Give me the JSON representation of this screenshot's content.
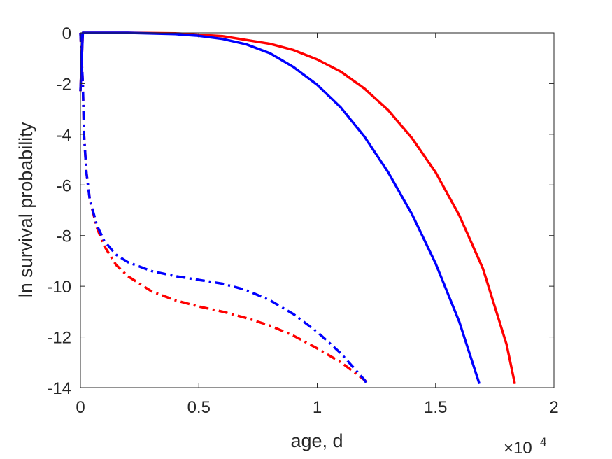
{
  "chart_data": {
    "type": "line",
    "title": "",
    "xlabel": "age, d",
    "ylabel": "ln survival probability",
    "x_exponent_label": {
      "base": "×10",
      "exponent": "4"
    },
    "xlim": [
      0,
      20000
    ],
    "ylim": [
      -14,
      0
    ],
    "x_ticks": [
      0,
      5000,
      10000,
      15000,
      20000
    ],
    "x_tick_labels": [
      "0",
      "0.5",
      "1",
      "1.5",
      "2"
    ],
    "y_ticks": [
      0,
      -2,
      -4,
      -6,
      -8,
      -10,
      -12,
      -14
    ],
    "y_tick_labels": [
      "0",
      "-2",
      "-4",
      "-6",
      "-8",
      "-10",
      "-12",
      "-14"
    ],
    "grid": false,
    "series": [
      {
        "color": "#ff0000",
        "line_style": "solid",
        "x": [
          0,
          100,
          2000,
          4000,
          6000,
          8000,
          9000,
          10000,
          11000,
          12000,
          13000,
          14000,
          15000,
          16000,
          17000,
          18000,
          18350
        ],
        "y": [
          -2.3,
          0,
          0,
          -0.02,
          -0.13,
          -0.43,
          -0.68,
          -1.05,
          -1.53,
          -2.2,
          -3.05,
          -4.15,
          -5.5,
          -7.2,
          -9.3,
          -12.3,
          -13.85
        ]
      },
      {
        "color": "#0000ff",
        "line_style": "solid",
        "x": [
          0,
          100,
          2000,
          4000,
          5000,
          6000,
          7000,
          8000,
          9000,
          10000,
          11000,
          12000,
          13000,
          14000,
          15000,
          16000,
          16850
        ],
        "y": [
          -2.3,
          0,
          0,
          -0.05,
          -0.12,
          -0.24,
          -0.45,
          -0.8,
          -1.35,
          -2.05,
          -2.95,
          -4.1,
          -5.5,
          -7.15,
          -9.1,
          -11.4,
          -13.85
        ]
      },
      {
        "color": "#ff0000",
        "line_style": "dashdot",
        "x": [
          0,
          100,
          150,
          250,
          400,
          700,
          1000,
          1500,
          2000,
          3000,
          4000,
          5000,
          6000,
          7000,
          8000,
          9000,
          10000,
          11000,
          12000,
          12150
        ],
        "y": [
          0,
          -2,
          -4,
          -5.5,
          -6.6,
          -7.7,
          -8.4,
          -9.15,
          -9.6,
          -10.2,
          -10.55,
          -10.8,
          -11.0,
          -11.25,
          -11.55,
          -11.95,
          -12.45,
          -13.0,
          -13.7,
          -13.85
        ]
      },
      {
        "color": "#0000ff",
        "line_style": "dashdot",
        "x": [
          0,
          100,
          150,
          250,
          400,
          700,
          1000,
          1500,
          2000,
          3000,
          4000,
          5000,
          6000,
          7000,
          8000,
          9000,
          10000,
          11000,
          12000,
          12100
        ],
        "y": [
          0,
          -2,
          -4,
          -5.5,
          -6.6,
          -7.6,
          -8.2,
          -8.75,
          -9.05,
          -9.4,
          -9.6,
          -9.75,
          -9.9,
          -10.15,
          -10.55,
          -11.1,
          -11.8,
          -12.65,
          -13.7,
          -13.85
        ]
      }
    ]
  }
}
